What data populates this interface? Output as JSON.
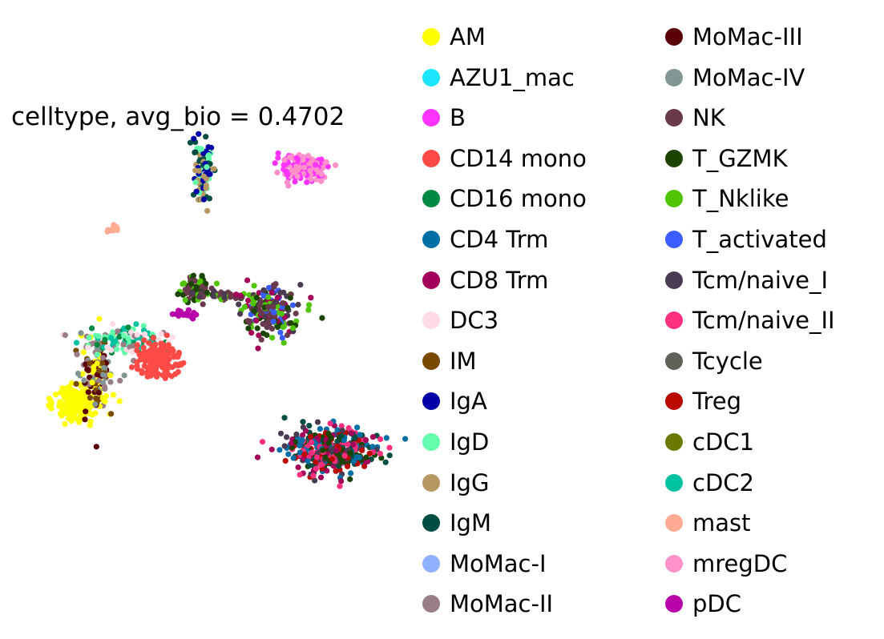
{
  "chart_data": {
    "type": "scatter",
    "title": "celltype, avg_bio = 0.4702",
    "xlabel": "",
    "ylabel": "",
    "grid": false,
    "legend_position": "right",
    "series": [
      {
        "name": "AM",
        "color": "#ffff00"
      },
      {
        "name": "AZU1_mac",
        "color": "#1ce6ff"
      },
      {
        "name": "B",
        "color": "#ff34ff"
      },
      {
        "name": "CD14 mono",
        "color": "#ff4a46"
      },
      {
        "name": "CD16 mono",
        "color": "#008941"
      },
      {
        "name": "CD4 Trm",
        "color": "#006fa6"
      },
      {
        "name": "CD8 Trm",
        "color": "#a30059"
      },
      {
        "name": "DC3",
        "color": "#ffdbe5"
      },
      {
        "name": "IM",
        "color": "#7a4900"
      },
      {
        "name": "IgA",
        "color": "#0000a6"
      },
      {
        "name": "IgD",
        "color": "#63ffac"
      },
      {
        "name": "IgG",
        "color": "#b79762"
      },
      {
        "name": "IgM",
        "color": "#004d43"
      },
      {
        "name": "MoMac-I",
        "color": "#8fb0ff"
      },
      {
        "name": "MoMac-II",
        "color": "#997d87"
      },
      {
        "name": "MoMac-III",
        "color": "#5a0007"
      },
      {
        "name": "MoMac-IV",
        "color": "#809693"
      },
      {
        "name": "NK",
        "color": "#6a3a4c"
      },
      {
        "name": "T_GZMK",
        "color": "#1b4400"
      },
      {
        "name": "T_Nklike",
        "color": "#4fc601"
      },
      {
        "name": "T_activated",
        "color": "#3b5dff"
      },
      {
        "name": "Tcm/naive_I",
        "color": "#4a3b53"
      },
      {
        "name": "Tcm/naive_II",
        "color": "#ff2f80"
      },
      {
        "name": "Tcycle",
        "color": "#61615a"
      },
      {
        "name": "Treg",
        "color": "#ba0900"
      },
      {
        "name": "cDC1",
        "color": "#6b7900"
      },
      {
        "name": "cDC2",
        "color": "#00c2a0"
      },
      {
        "name": "mast",
        "color": "#ffaa92"
      },
      {
        "name": "mregDC",
        "color": "#ff90c9"
      },
      {
        "name": "pDC",
        "color": "#b903aa"
      }
    ],
    "clusters": [
      {
        "members": [
          "AM"
        ],
        "cx": 0.063,
        "cy": 0.301,
        "sx": 0.015,
        "sy": 0.02,
        "n": 170
      },
      {
        "members": [
          "MoMac-III",
          "MoMac-II",
          "IM",
          "AM",
          "MoMac-IV"
        ],
        "cx": 0.09,
        "cy": 0.375,
        "sx": 0.012,
        "sy": 0.04,
        "n": 160
      },
      {
        "members": [
          "cDC2",
          "CD16 mono",
          "DC3",
          "MoMac-II",
          "IgD"
        ],
        "cx": 0.135,
        "cy": 0.445,
        "sx": 0.028,
        "sy": 0.018,
        "n": 140
      },
      {
        "members": [
          "CD14 mono"
        ],
        "cx": 0.175,
        "cy": 0.405,
        "sx": 0.014,
        "sy": 0.017,
        "n": 180
      },
      {
        "members": [
          "B",
          "mregDC"
        ],
        "cx": 0.375,
        "cy": 0.845,
        "sx": 0.017,
        "sy": 0.014,
        "n": 190
      },
      {
        "members": [
          "IgA",
          "IgG",
          "IgD",
          "IgM"
        ],
        "cx": 0.237,
        "cy": 0.845,
        "sx": 0.006,
        "sy": 0.04,
        "n": 100
      },
      {
        "members": [
          "mast"
        ],
        "cx": 0.113,
        "cy": 0.705,
        "sx": 0.004,
        "sy": 0.004,
        "n": 15
      },
      {
        "members": [
          "NK",
          "T_GZMK",
          "T_Nklike"
        ],
        "cx": 0.228,
        "cy": 0.565,
        "sx": 0.012,
        "sy": 0.015,
        "n": 75
      },
      {
        "members": [
          "T_Nklike",
          "NK",
          "Tcm/naive_I"
        ],
        "cx": 0.272,
        "cy": 0.55,
        "sx": 0.02,
        "sy": 0.005,
        "n": 40
      },
      {
        "members": [
          "pDC"
        ],
        "cx": 0.212,
        "cy": 0.51,
        "sx": 0.008,
        "sy": 0.006,
        "n": 20
      },
      {
        "members": [
          "T_Nklike",
          "CD8 Trm",
          "T_GZMK",
          "NK",
          "Tcm/naive_I",
          "T_activated"
        ],
        "cx": 0.33,
        "cy": 0.52,
        "sx": 0.02,
        "sy": 0.03,
        "n": 200
      },
      {
        "members": [
          "Tcm/naive_II",
          "CD4 Trm",
          "Treg",
          "Tcm/naive_I",
          "CD8 Trm",
          "T_GZMK",
          "IgM"
        ],
        "cx": 0.415,
        "cy": 0.195,
        "sx": 0.03,
        "sy": 0.025,
        "n": 380
      }
    ]
  }
}
